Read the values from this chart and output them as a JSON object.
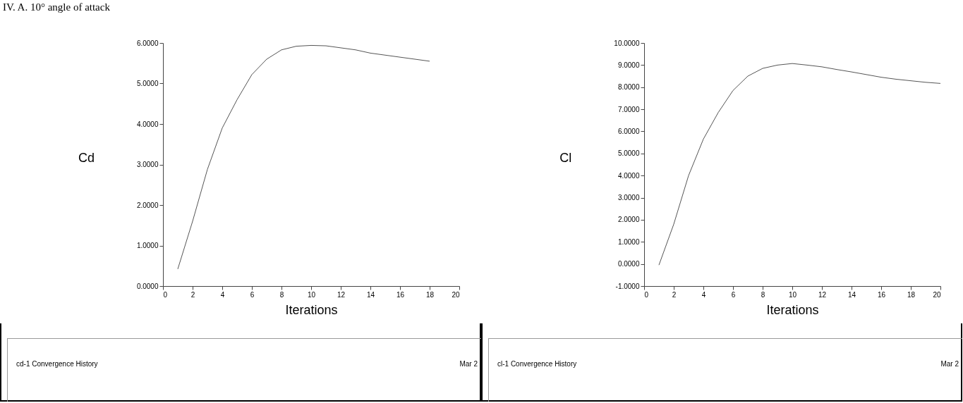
{
  "chart_data": [
    {
      "type": "line",
      "title": "IV. A. 10° angle of attack",
      "xlabel": "Iterations",
      "ylabel": "Cd",
      "grid": false,
      "x": [
        1,
        2,
        3,
        4,
        5,
        6,
        7,
        8,
        9,
        10,
        11,
        12,
        13,
        14,
        15,
        16,
        17,
        18
      ],
      "series": [
        {
          "color": "#555555",
          "values": [
            0.42,
            1.6,
            2.88,
            3.9,
            4.6,
            5.22,
            5.6,
            5.83,
            5.92,
            5.94,
            5.93,
            5.88,
            5.83,
            5.75,
            5.7,
            5.65,
            5.6,
            5.55
          ]
        }
      ],
      "xlim": [
        0,
        20
      ],
      "xticks": [
        0,
        2,
        4,
        6,
        8,
        10,
        12,
        14,
        16,
        18,
        20
      ],
      "ylim": [
        0,
        6
      ],
      "yticks": [
        {
          "value": 0,
          "label": "0.0000"
        },
        {
          "value": 1,
          "label": "1.0000"
        },
        {
          "value": 2,
          "label": "2.0000"
        },
        {
          "value": 3,
          "label": "3.0000"
        },
        {
          "value": 4,
          "label": "4.0000"
        },
        {
          "value": 5,
          "label": "5.0000"
        },
        {
          "value": 6,
          "label": "6.0000"
        }
      ],
      "annotations": [
        "cd-1 Convergence History",
        "Mar 2"
      ]
    },
    {
      "type": "line",
      "xlabel": "Iterations",
      "ylabel": "Cl",
      "grid": false,
      "x": [
        1,
        2,
        3,
        4,
        5,
        6,
        7,
        8,
        9,
        10,
        11,
        12,
        13,
        14,
        15,
        16,
        17,
        18,
        19,
        20
      ],
      "series": [
        {
          "color": "#555555",
          "values": [
            -0.05,
            1.8,
            4.0,
            5.65,
            6.85,
            7.85,
            8.5,
            8.85,
            9.0,
            9.07,
            9.0,
            8.92,
            8.8,
            8.69,
            8.57,
            8.45,
            8.36,
            8.29,
            8.22,
            8.17
          ]
        }
      ],
      "xlim": [
        0,
        20
      ],
      "xticks": [
        0,
        2,
        4,
        6,
        8,
        10,
        12,
        14,
        16,
        18,
        20
      ],
      "ylim": [
        -1,
        10
      ],
      "yticks": [
        {
          "value": -1,
          "label": "-1.0000"
        },
        {
          "value": 0,
          "label": "0.0000"
        },
        {
          "value": 1,
          "label": "1.0000"
        },
        {
          "value": 2,
          "label": "2.0000"
        },
        {
          "value": 3,
          "label": "3.0000"
        },
        {
          "value": 4,
          "label": "4.0000"
        },
        {
          "value": 5,
          "label": "5.0000"
        },
        {
          "value": 6,
          "label": "6.0000"
        },
        {
          "value": 7,
          "label": "7.0000"
        },
        {
          "value": 8,
          "label": "8.0000"
        },
        {
          "value": 9,
          "label": "9.0000"
        },
        {
          "value": 10,
          "label": "10.0000"
        }
      ],
      "annotations": [
        "cl-1 Convergence History",
        "Mar 2"
      ]
    }
  ]
}
